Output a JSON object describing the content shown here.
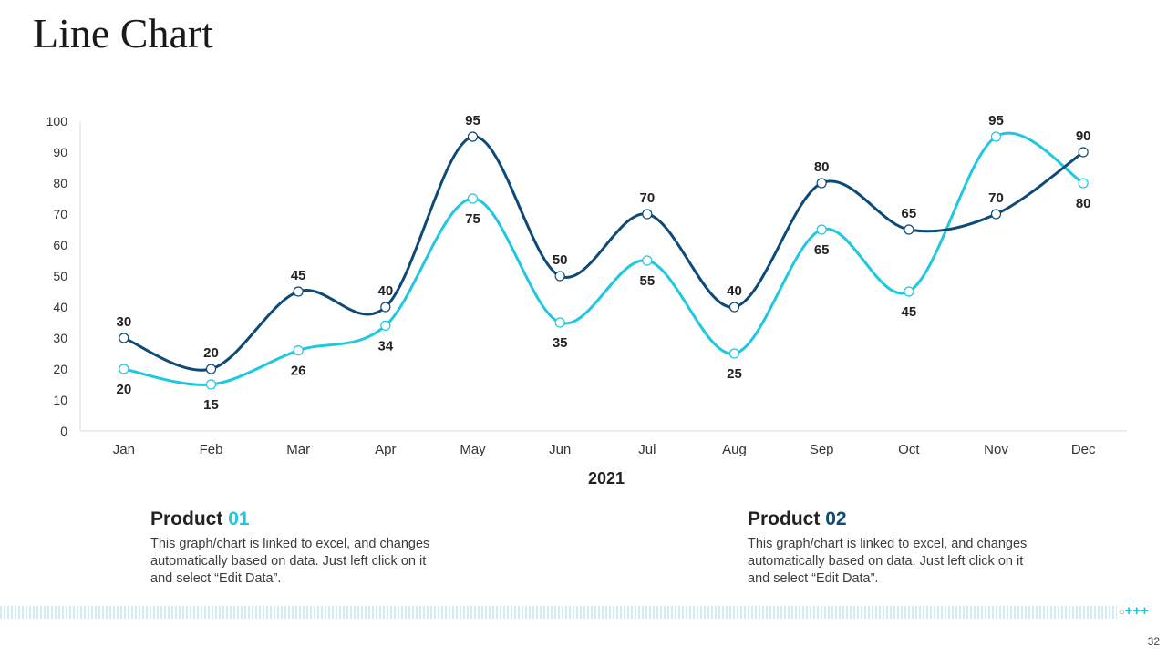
{
  "slide": {
    "title": "Line Chart",
    "page_number": "32",
    "decoration": "+++"
  },
  "colors": {
    "product1": "#1ec8e0",
    "product2": "#0e4a78"
  },
  "chart_data": {
    "type": "line",
    "title": "",
    "xlabel": "2021",
    "ylabel": "",
    "categories": [
      "Jan",
      "Feb",
      "Mar",
      "Apr",
      "May",
      "Jun",
      "Jul",
      "Aug",
      "Sep",
      "Oct",
      "Nov",
      "Dec"
    ],
    "ylim": [
      0,
      100
    ],
    "yticks": [
      0,
      10,
      20,
      30,
      40,
      50,
      60,
      70,
      80,
      90,
      100
    ],
    "smooth": true,
    "legend": "none",
    "series": [
      {
        "name": "Product 01",
        "color": "#1ec8e0",
        "label_position": [
          "below",
          "below",
          "below",
          "below",
          "below",
          "below",
          "below",
          "below",
          "below",
          "below",
          "above",
          "below"
        ],
        "values": [
          20,
          15,
          26,
          34,
          75,
          35,
          55,
          25,
          65,
          45,
          95,
          80
        ]
      },
      {
        "name": "Product 02",
        "color": "#0e4a78",
        "label_position": [
          "above",
          "above",
          "above",
          "above",
          "above",
          "above",
          "above",
          "above",
          "above",
          "above",
          "above",
          "above"
        ],
        "values": [
          30,
          20,
          45,
          40,
          95,
          50,
          70,
          40,
          80,
          65,
          70,
          90
        ]
      }
    ]
  },
  "products": [
    {
      "label": "Product",
      "number": "01",
      "description": "This graph/chart is linked to excel, and changes automatically based on data. Just left click on it and select “Edit Data”."
    },
    {
      "label": "Product",
      "number": "02",
      "description": "This graph/chart is linked to excel, and changes automatically based on data. Just left click on it and select “Edit Data”."
    }
  ]
}
